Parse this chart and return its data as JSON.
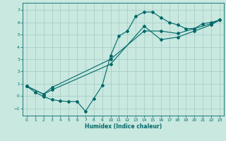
{
  "title": "",
  "xlabel": "Humidex (Indice chaleur)",
  "ylabel": "",
  "bg_color": "#c8e8e0",
  "line_color": "#006868",
  "grid_color": "#a8d0c8",
  "xlim": [
    -0.5,
    23.5
  ],
  "ylim": [
    -1.6,
    7.6
  ],
  "xticks": [
    0,
    1,
    2,
    3,
    4,
    5,
    6,
    7,
    8,
    9,
    10,
    11,
    12,
    13,
    14,
    15,
    16,
    17,
    18,
    19,
    20,
    21,
    22,
    23
  ],
  "yticks": [
    -1,
    0,
    1,
    2,
    3,
    4,
    5,
    6,
    7
  ],
  "line1": {
    "x": [
      0,
      1,
      2,
      3,
      4,
      5,
      6,
      7,
      8,
      9,
      10,
      11,
      12,
      13,
      14,
      15,
      16,
      17,
      18,
      19,
      20,
      21,
      22,
      23
    ],
    "y": [
      0.8,
      0.3,
      -0.05,
      -0.3,
      -0.4,
      -0.45,
      -0.45,
      -1.25,
      -0.2,
      0.85,
      3.3,
      4.9,
      5.3,
      6.5,
      6.85,
      6.85,
      6.4,
      6.0,
      5.8,
      5.5,
      5.5,
      5.9,
      6.0,
      6.2
    ]
  },
  "line2": {
    "x": [
      0,
      2,
      3,
      10,
      14,
      16,
      18,
      20,
      22,
      23
    ],
    "y": [
      0.8,
      0.15,
      0.5,
      2.6,
      5.7,
      4.6,
      4.8,
      5.3,
      5.8,
      6.2
    ]
  },
  "line3": {
    "x": [
      0,
      2,
      3,
      10,
      14,
      16,
      18,
      20,
      22,
      23
    ],
    "y": [
      0.8,
      0.15,
      0.7,
      3.0,
      5.3,
      5.3,
      5.1,
      5.5,
      5.9,
      6.2
    ]
  }
}
